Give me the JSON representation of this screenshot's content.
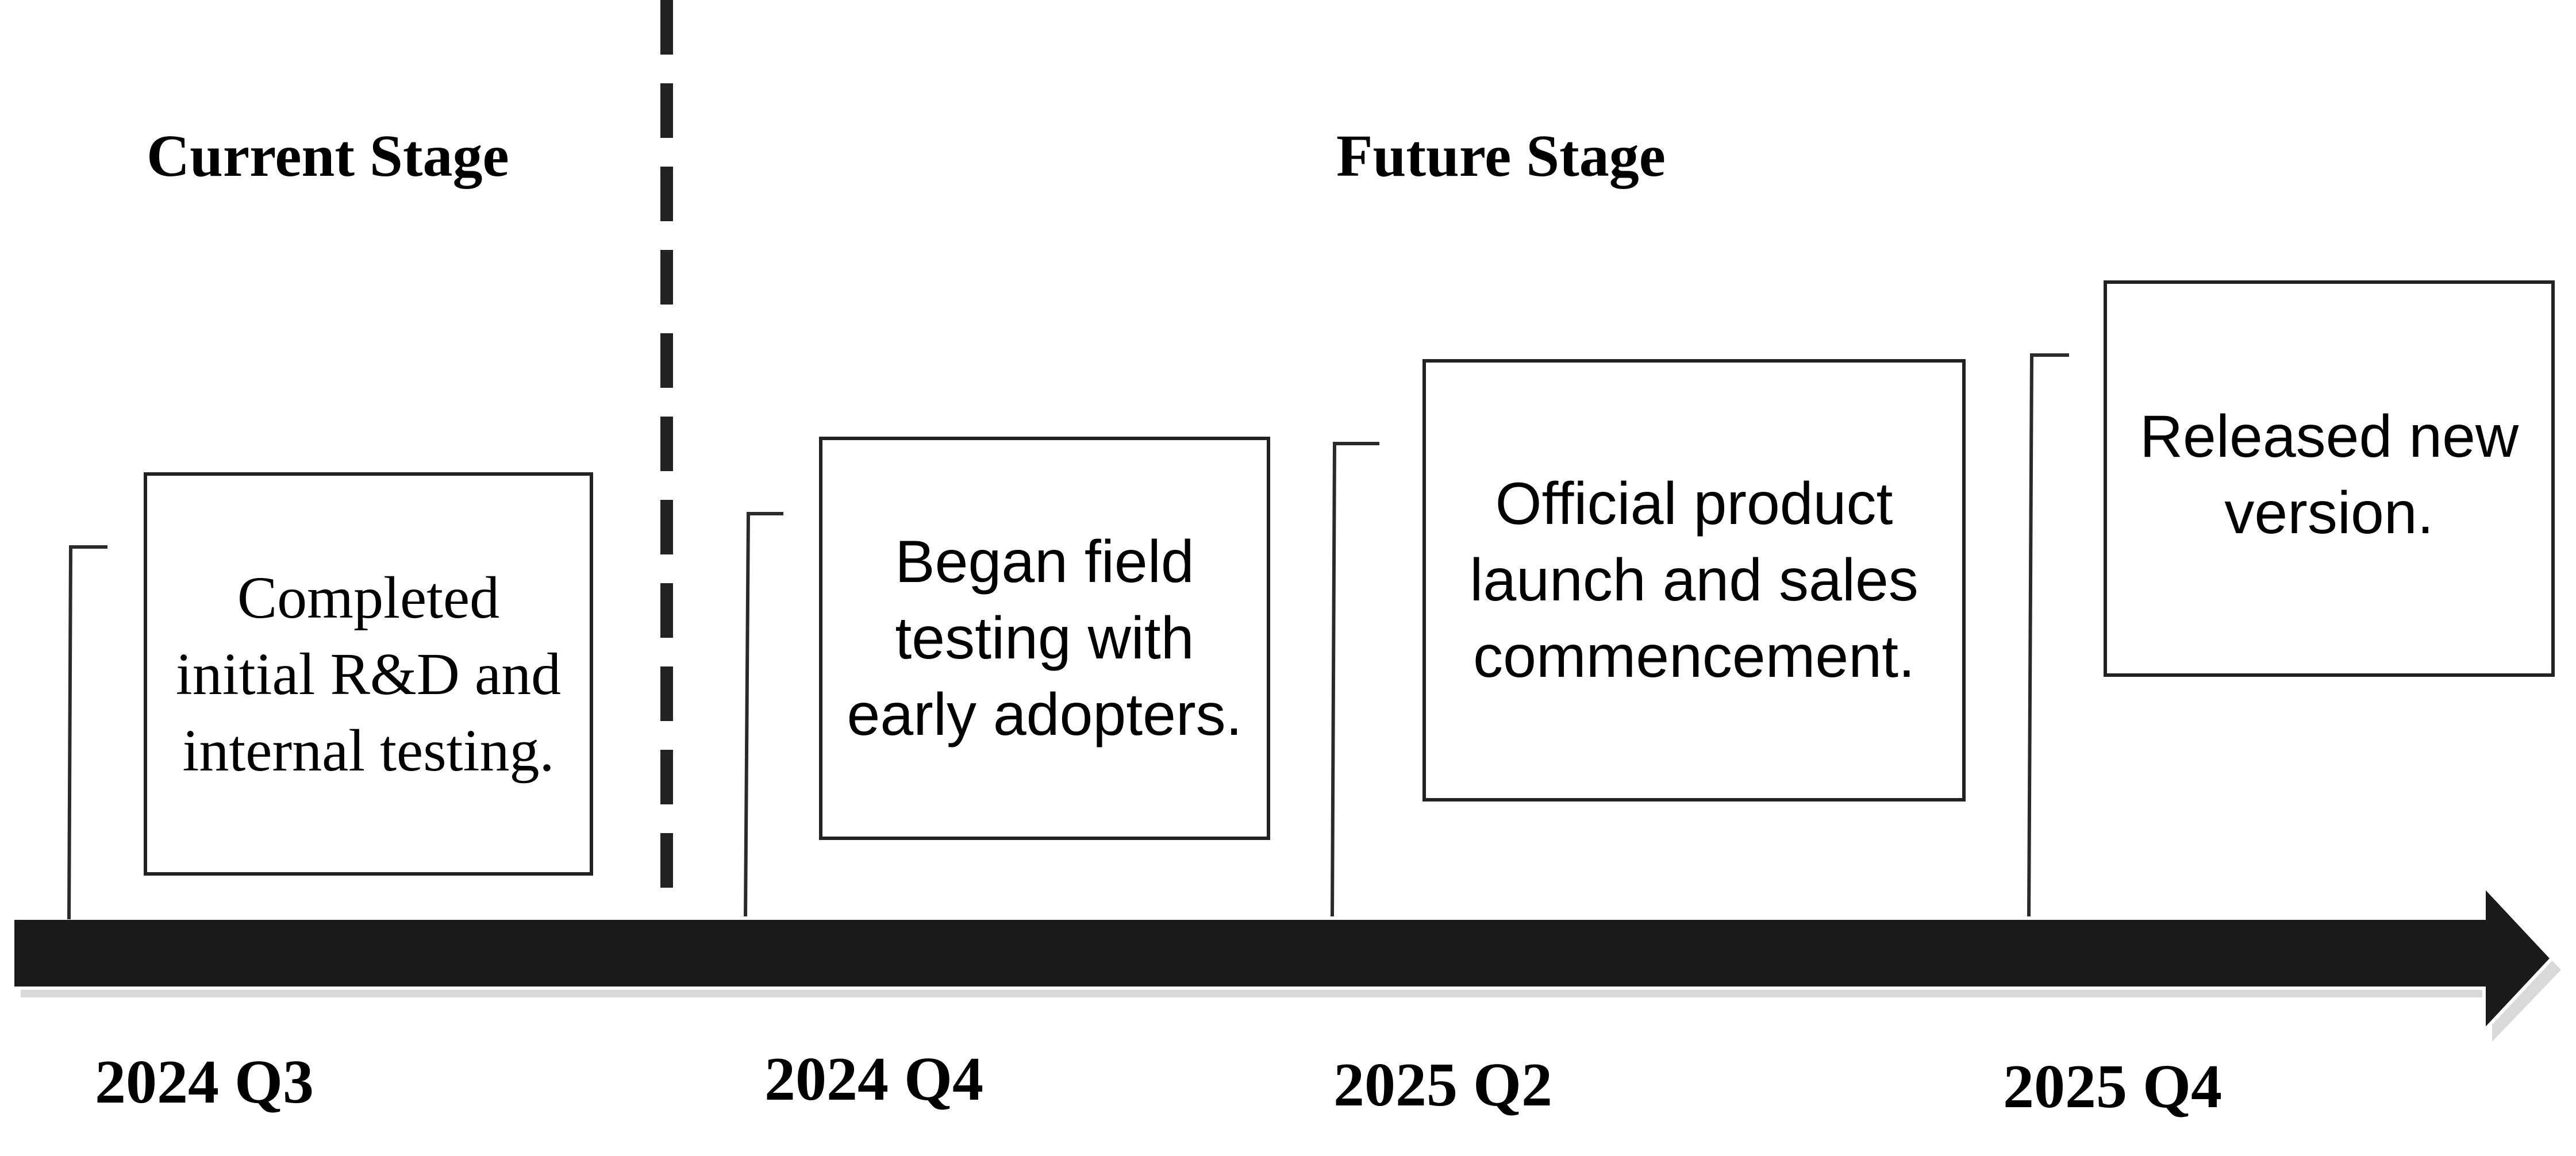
{
  "stages": {
    "current": "Current Stage",
    "future": "Future Stage"
  },
  "milestones": [
    {
      "date": "2024 Q3",
      "text": "Completed initial R&D and internal testing."
    },
    {
      "date": "2024 Q4",
      "text": "Began field testing with early adopters."
    },
    {
      "date": "2025 Q2",
      "text": "Official product launch and sales commencement."
    },
    {
      "date": "2025 Q4",
      "text": "Released new version."
    }
  ],
  "colors": {
    "arrow": "#1a1a1a",
    "line": "#2a2a2a",
    "text": "#000000"
  }
}
